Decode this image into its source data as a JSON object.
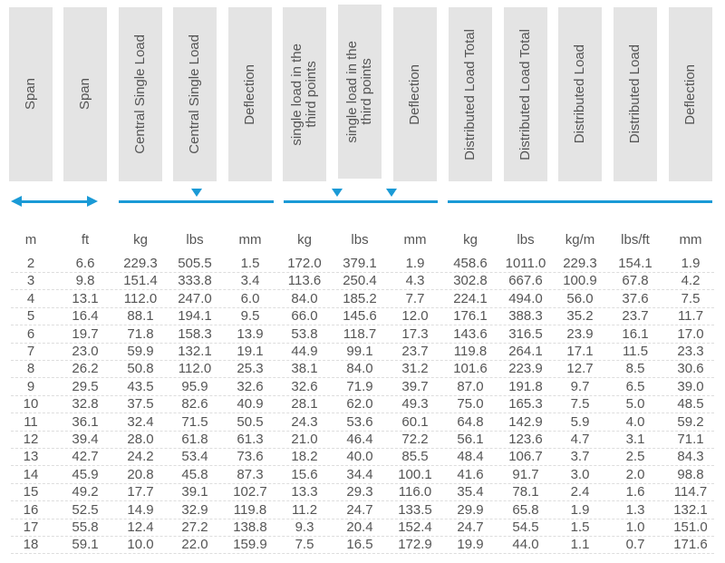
{
  "colors": {
    "accent": "#1a9ad6",
    "header_bg": "#e4e4e4",
    "text": "#555555"
  },
  "headers": [
    "Span",
    "Span",
    "Central Single Load",
    "Central Single Load",
    "Deflection",
    "single load in the\nthird points",
    "single load in the\nthird points",
    "Deflection",
    "Distributed Load Total",
    "Distributed Load Total",
    "Distributed Load",
    "Distributed Load",
    "Deflection"
  ],
  "icons": {
    "span_arrow": "double-arrow-icon",
    "load_marker": "triangle-down-icon"
  },
  "units": [
    "m",
    "ft",
    "kg",
    "lbs",
    "mm",
    "kg",
    "lbs",
    "mm",
    "kg",
    "lbs",
    "kg/m",
    "lbs/ft",
    "mm"
  ],
  "rows": [
    [
      "2",
      "6.6",
      "229.3",
      "505.5",
      "1.5",
      "172.0",
      "379.1",
      "1.9",
      "458.6",
      "1011.0",
      "229.3",
      "154.1",
      "1.9"
    ],
    [
      "3",
      "9.8",
      "151.4",
      "333.8",
      "3.4",
      "113.6",
      "250.4",
      "4.3",
      "302.8",
      "667.6",
      "100.9",
      "67.8",
      "4.2"
    ],
    [
      "4",
      "13.1",
      "112.0",
      "247.0",
      "6.0",
      "84.0",
      "185.2",
      "7.7",
      "224.1",
      "494.0",
      "56.0",
      "37.6",
      "7.5"
    ],
    [
      "5",
      "16.4",
      "88.1",
      "194.1",
      "9.5",
      "66.0",
      "145.6",
      "12.0",
      "176.1",
      "388.3",
      "35.2",
      "23.7",
      "11.7"
    ],
    [
      "6",
      "19.7",
      "71.8",
      "158.3",
      "13.9",
      "53.8",
      "118.7",
      "17.3",
      "143.6",
      "316.5",
      "23.9",
      "16.1",
      "17.0"
    ],
    [
      "7",
      "23.0",
      "59.9",
      "132.1",
      "19.1",
      "44.9",
      "99.1",
      "23.7",
      "119.8",
      "264.1",
      "17.1",
      "11.5",
      "23.3"
    ],
    [
      "8",
      "26.2",
      "50.8",
      "112.0",
      "25.3",
      "38.1",
      "84.0",
      "31.2",
      "101.6",
      "223.9",
      "12.7",
      "8.5",
      "30.6"
    ],
    [
      "9",
      "29.5",
      "43.5",
      "95.9",
      "32.6",
      "32.6",
      "71.9",
      "39.7",
      "87.0",
      "191.8",
      "9.7",
      "6.5",
      "39.0"
    ],
    [
      "10",
      "32.8",
      "37.5",
      "82.6",
      "40.9",
      "28.1",
      "62.0",
      "49.3",
      "75.0",
      "165.3",
      "7.5",
      "5.0",
      "48.5"
    ],
    [
      "11",
      "36.1",
      "32.4",
      "71.5",
      "50.5",
      "24.3",
      "53.6",
      "60.1",
      "64.8",
      "142.9",
      "5.9",
      "4.0",
      "59.2"
    ],
    [
      "12",
      "39.4",
      "28.0",
      "61.8",
      "61.3",
      "21.0",
      "46.4",
      "72.2",
      "56.1",
      "123.6",
      "4.7",
      "3.1",
      "71.1"
    ],
    [
      "13",
      "42.7",
      "24.2",
      "53.4",
      "73.6",
      "18.2",
      "40.0",
      "85.5",
      "48.4",
      "106.7",
      "3.7",
      "2.5",
      "84.3"
    ],
    [
      "14",
      "45.9",
      "20.8",
      "45.8",
      "87.3",
      "15.6",
      "34.4",
      "100.1",
      "41.6",
      "91.7",
      "3.0",
      "2.0",
      "98.8"
    ],
    [
      "15",
      "49.2",
      "17.7",
      "39.1",
      "102.7",
      "13.3",
      "29.3",
      "116.0",
      "35.4",
      "78.1",
      "2.4",
      "1.6",
      "114.7"
    ],
    [
      "16",
      "52.5",
      "14.9",
      "32.9",
      "119.8",
      "11.2",
      "24.7",
      "133.5",
      "29.9",
      "65.8",
      "1.9",
      "1.3",
      "132.1"
    ],
    [
      "17",
      "55.8",
      "12.4",
      "27.2",
      "138.8",
      "9.3",
      "20.4",
      "152.4",
      "24.7",
      "54.5",
      "1.5",
      "1.0",
      "151.0"
    ],
    [
      "18",
      "59.1",
      "10.0",
      "22.0",
      "159.9",
      "7.5",
      "16.5",
      "172.9",
      "19.9",
      "44.0",
      "1.1",
      "0.7",
      "171.6"
    ]
  ]
}
